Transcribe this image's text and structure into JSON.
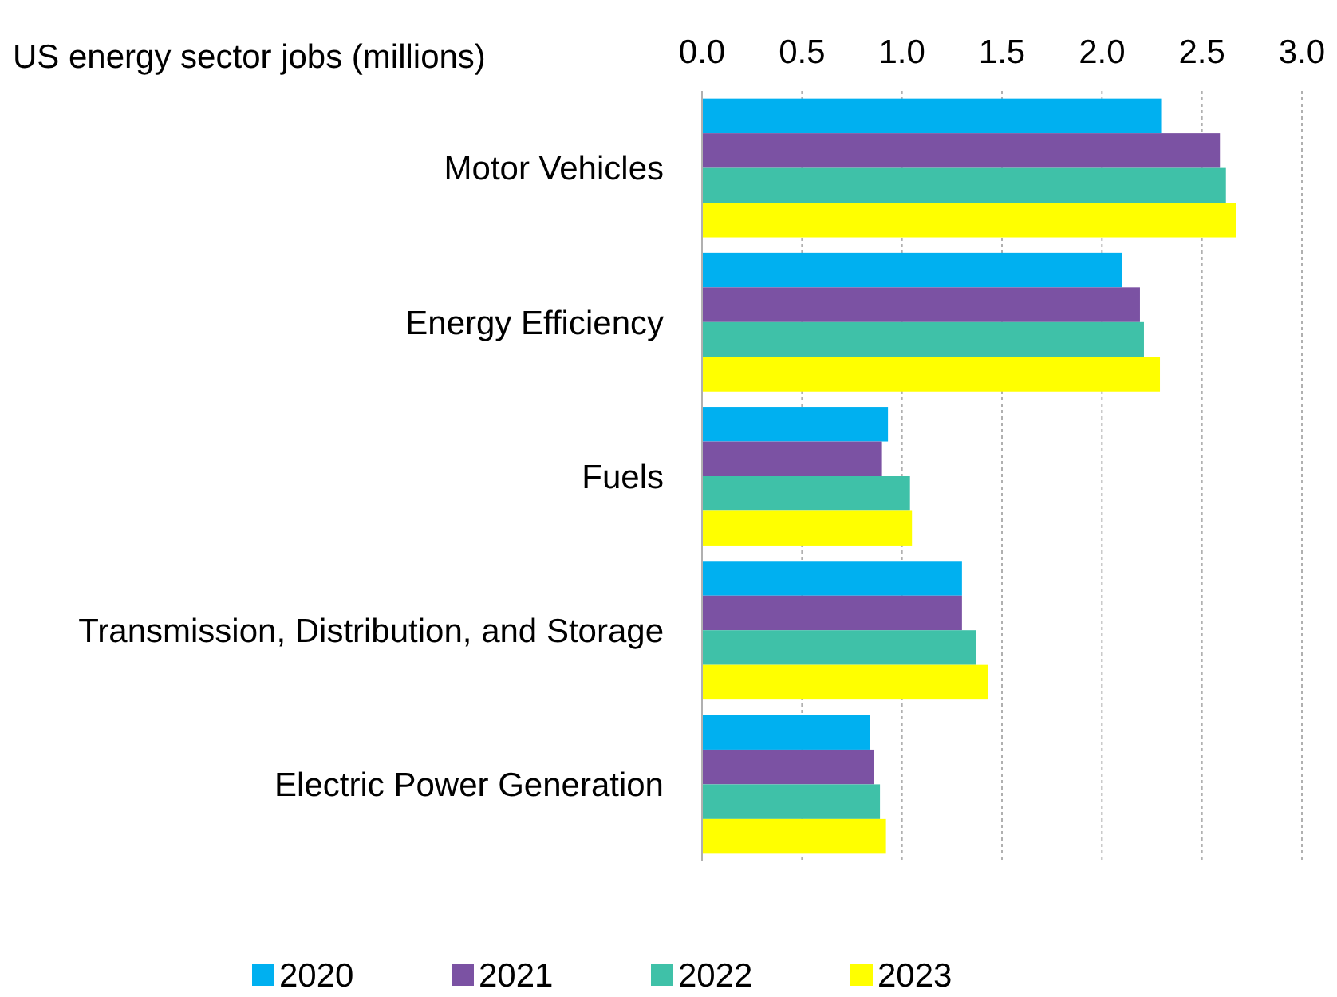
{
  "chart_data": {
    "type": "bar",
    "orientation": "horizontal",
    "title": "US energy sector jobs (millions)",
    "categories": [
      "Motor Vehicles",
      "Energy Efficiency",
      "Fuels",
      "Transmission, Distribution, and Storage",
      "Electric Power Generation"
    ],
    "series": [
      {
        "name": "2020",
        "color": "#00b0f0",
        "values": [
          2.3,
          2.1,
          0.93,
          1.3,
          0.84
        ]
      },
      {
        "name": "2021",
        "color": "#7b52a3",
        "values": [
          2.59,
          2.19,
          0.9,
          1.3,
          0.86
        ]
      },
      {
        "name": "2022",
        "color": "#3fc1a8",
        "values": [
          2.62,
          2.21,
          1.04,
          1.37,
          0.89
        ]
      },
      {
        "name": "2023",
        "color": "#ffff00",
        "values": [
          2.67,
          2.29,
          1.05,
          1.43,
          0.92
        ]
      }
    ],
    "xlim": [
      0,
      3
    ],
    "xticks": [
      {
        "value": 0,
        "label": "0.0"
      },
      {
        "value": 0.5,
        "label": "0.5"
      },
      {
        "value": 1,
        "label": "1.0"
      },
      {
        "value": 1.5,
        "label": "1.5"
      },
      {
        "value": 2,
        "label": "2.0"
      },
      {
        "value": 2.5,
        "label": "2.5"
      },
      {
        "value": 3,
        "label": "3.0"
      }
    ],
    "grid": "x",
    "legend": "bottom"
  }
}
